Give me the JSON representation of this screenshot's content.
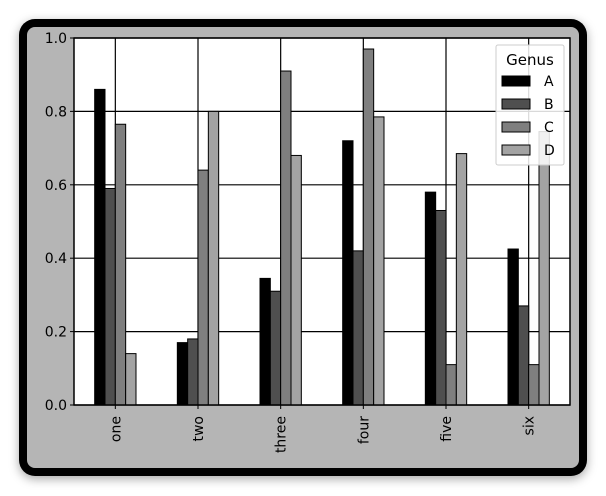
{
  "chart_data": {
    "type": "bar",
    "categories": [
      "one",
      "two",
      "three",
      "four",
      "five",
      "six"
    ],
    "series": [
      {
        "name": "A",
        "values": [
          0.86,
          0.17,
          0.345,
          0.72,
          0.58,
          0.425
        ],
        "color": "#000000"
      },
      {
        "name": "B",
        "values": [
          0.59,
          0.18,
          0.31,
          0.42,
          0.53,
          0.27
        ],
        "color": "#4f4f4f"
      },
      {
        "name": "C",
        "values": [
          0.765,
          0.64,
          0.91,
          0.97,
          0.11,
          0.11
        ],
        "color": "#7f7f7f"
      },
      {
        "name": "D",
        "values": [
          0.14,
          0.8,
          0.68,
          0.785,
          0.685,
          0.745
        ],
        "color": "#a3a3a3"
      }
    ],
    "ylim": [
      0.0,
      1.0
    ],
    "yticks": [
      "0.0",
      "0.2",
      "0.4",
      "0.6",
      "0.8",
      "1.0"
    ],
    "xlabel": "",
    "ylabel": "",
    "grid": true,
    "legend": {
      "title": "Genus",
      "position": "top-right"
    }
  }
}
